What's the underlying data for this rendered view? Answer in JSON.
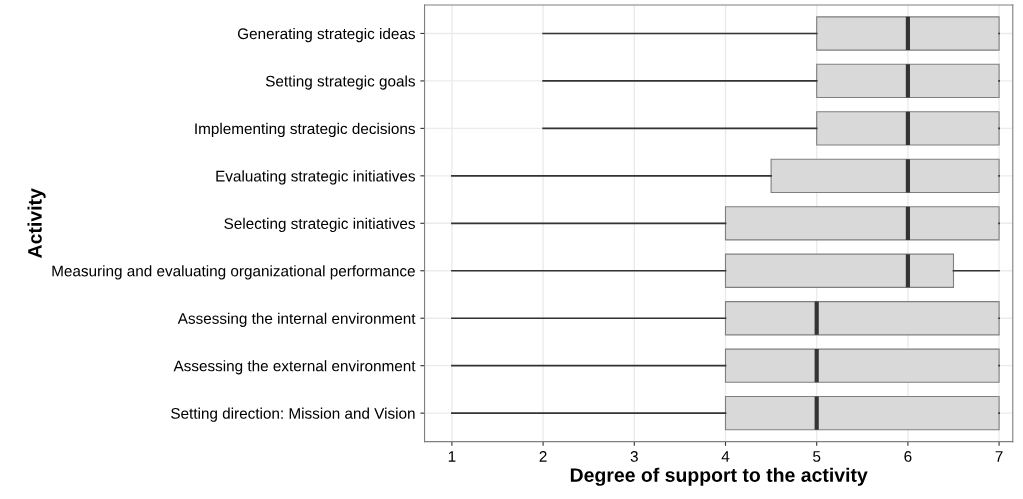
{
  "chart_data": {
    "type": "box",
    "orientation": "horizontal",
    "xlabel": "Degree of support to the activity",
    "ylabel": "Activity",
    "categories": [
      "Generating strategic ideas",
      "Setting strategic goals",
      "Implementing strategic decisions",
      "Evaluating strategic initiatives",
      "Selecting strategic initiatives",
      "Measuring and evaluating organizational performance",
      "Assessing the internal environment",
      "Assessing the external environment",
      "Setting direction: Mission and Vision"
    ],
    "boxes": [
      {
        "low": 2,
        "q1": 5,
        "median": 6,
        "q3": 7,
        "high": 7
      },
      {
        "low": 2,
        "q1": 5,
        "median": 6,
        "q3": 7,
        "high": 7
      },
      {
        "low": 2,
        "q1": 5,
        "median": 6,
        "q3": 7,
        "high": 7
      },
      {
        "low": 1,
        "q1": 4.5,
        "median": 6,
        "q3": 7,
        "high": 7
      },
      {
        "low": 1,
        "q1": 4,
        "median": 6,
        "q3": 7,
        "high": 7
      },
      {
        "low": 1,
        "q1": 4,
        "median": 6,
        "q3": 6.5,
        "high": 7
      },
      {
        "low": 1,
        "q1": 4,
        "median": 5,
        "q3": 7,
        "high": 7
      },
      {
        "low": 1,
        "q1": 4,
        "median": 5,
        "q3": 7,
        "high": 7
      },
      {
        "low": 1,
        "q1": 4,
        "median": 5,
        "q3": 7,
        "high": 7
      }
    ],
    "color": "#d9d9d9",
    "xlim": [
      0.7,
      7.15
    ],
    "xticks": [
      1,
      2,
      3,
      4,
      5,
      6,
      7
    ],
    "grid": true
  }
}
